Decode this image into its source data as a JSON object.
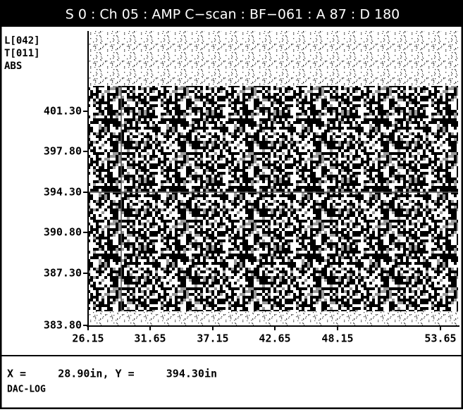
{
  "header": {
    "title": "S 0 : Ch 05 : AMP C−scan : BF−061 : A 87 : D 180"
  },
  "side_labels": [
    "L[042]",
    "T[011]",
    "ABS"
  ],
  "y_axis": {
    "ticks": [
      "401.30",
      "397.80",
      "394.30",
      "390.80",
      "387.30",
      "383.80"
    ]
  },
  "x_axis": {
    "ticks": [
      "26.15",
      "31.65",
      "37.15",
      "42.65",
      "48.15",
      "53.65"
    ]
  },
  "status": {
    "position": "X =     28.90in, Y =     394.30in",
    "mode": "DAC-LOG"
  }
}
